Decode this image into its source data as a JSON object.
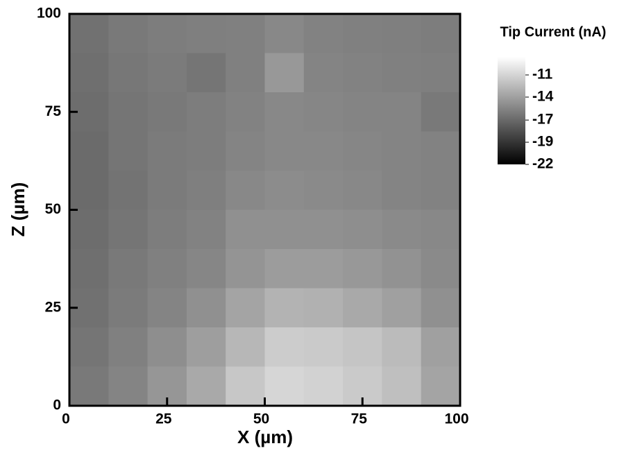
{
  "chart_data": {
    "type": "heatmap",
    "xlabel": "X (µm)",
    "ylabel": "Z (µm)",
    "colorbar_title": "Tip Current (nA)",
    "x": [
      5,
      15,
      25,
      35,
      45,
      55,
      65,
      75,
      85,
      95
    ],
    "y": [
      95,
      85,
      75,
      65,
      55,
      45,
      35,
      25,
      15,
      5
    ],
    "values": [
      [
        -16.2,
        -15.8,
        -15.6,
        -15.5,
        -15.4,
        -15.0,
        -15.3,
        -15.4,
        -15.5,
        -15.6
      ],
      [
        -16.3,
        -15.9,
        -15.7,
        -16.0,
        -15.4,
        -14.2,
        -15.2,
        -15.3,
        -15.4,
        -15.5
      ],
      [
        -16.4,
        -16.0,
        -15.8,
        -15.6,
        -15.3,
        -15.0,
        -15.1,
        -15.2,
        -15.2,
        -15.8
      ],
      [
        -16.5,
        -16.0,
        -15.7,
        -15.6,
        -15.2,
        -15.0,
        -15.0,
        -15.1,
        -15.2,
        -15.3
      ],
      [
        -16.5,
        -16.1,
        -15.7,
        -15.5,
        -15.0,
        -14.8,
        -14.9,
        -15.0,
        -15.2,
        -15.3
      ],
      [
        -16.4,
        -16.0,
        -15.6,
        -15.3,
        -14.6,
        -14.6,
        -14.6,
        -14.7,
        -14.9,
        -15.0
      ],
      [
        -16.3,
        -15.8,
        -15.4,
        -15.1,
        -14.4,
        -14.0,
        -14.0,
        -14.2,
        -14.5,
        -14.9
      ],
      [
        -16.2,
        -15.7,
        -15.2,
        -14.6,
        -13.6,
        -12.8,
        -12.9,
        -13.3,
        -13.8,
        -14.6
      ],
      [
        -16.0,
        -15.4,
        -14.7,
        -13.9,
        -12.6,
        -11.5,
        -11.6,
        -11.9,
        -12.4,
        -13.8
      ],
      [
        -15.8,
        -15.2,
        -14.3,
        -13.3,
        -11.8,
        -11.0,
        -11.2,
        -11.6,
        -12.2,
        -13.6
      ]
    ],
    "xlim": [
      0,
      100
    ],
    "xticks": [
      0,
      25,
      50,
      75,
      100
    ],
    "ylim": [
      0,
      100
    ],
    "yticks": [
      0,
      25,
      50,
      75,
      100
    ],
    "clim": [
      -22,
      -8.9
    ],
    "cticks": [
      {
        "value": -11.1,
        "label": "-11"
      },
      {
        "value": -13.8,
        "label": "-14"
      },
      {
        "value": -16.6,
        "label": "-17"
      },
      {
        "value": -19.3,
        "label": "-19"
      },
      {
        "value": -22,
        "label": "-22"
      }
    ]
  }
}
